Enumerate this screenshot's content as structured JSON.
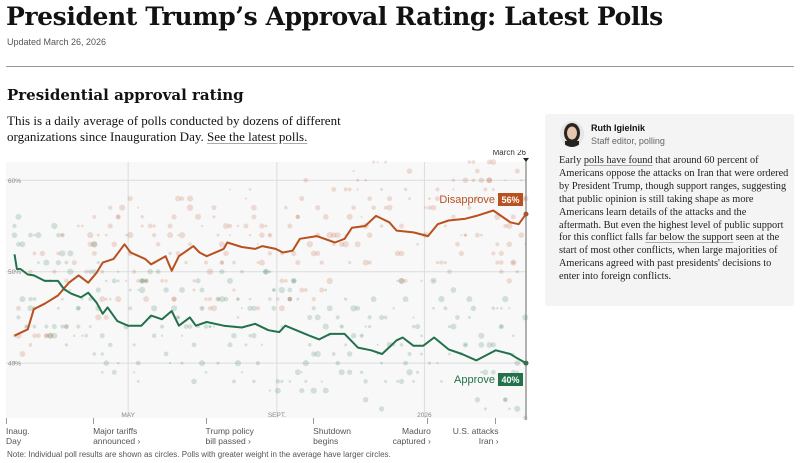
{
  "header": {
    "title": "President Trump’s Approval Rating: Latest Polls",
    "updated": "Updated March 26, 2026"
  },
  "section": {
    "title": "Presidential approval rating",
    "description": "This is a daily average of polls conducted by dozens of different organizations since Inauguration Day.",
    "link": "See the latest polls."
  },
  "panel": {
    "name": "Ruth Igielnik",
    "role": "Staff editor, polling",
    "body_parts": [
      "Early ",
      "polls have found",
      " that around 60 percent of Americans oppose the attacks on Iran that were ordered by President Trump, though support ranges, suggesting that public opinion is still taking shape as more Americans learn details of the attacks and the aftermath. But even the highest level of public support for this conflict falls ",
      "far below the support",
      " seen at the start of most other conflicts, when large majorities of Americans agreed with past presidents' decisions to enter into foreign conflicts."
    ]
  },
  "chart_data": {
    "type": "line",
    "y_ticks": [
      "60%",
      "50%",
      "40%"
    ],
    "y_tick_values": [
      60,
      50,
      40
    ],
    "ylim": [
      34,
      62
    ],
    "xlim": [
      "2025-01-20",
      "2026-03-26"
    ],
    "x_ticks": [
      {
        "label": "MAY",
        "date": "2025-05-01"
      },
      {
        "label": "SEPT.",
        "date": "2025-09-01"
      },
      {
        "label": "2026",
        "date": "2026-01-01"
      }
    ],
    "current_marker": {
      "label": "March 26",
      "date": "2026-03-26"
    },
    "grid": true,
    "colors": {
      "disapprove": "#b9501f",
      "approve": "#23714a"
    },
    "series": [
      {
        "name": "Disapprove",
        "end_label": "56%",
        "points": [
          [
            "2025-01-27",
            43.0
          ],
          [
            "2025-02-07",
            43.7
          ],
          [
            "2025-02-12",
            45.9
          ],
          [
            "2025-02-21",
            46.5
          ],
          [
            "2025-03-04",
            47.4
          ],
          [
            "2025-03-13",
            48.8
          ],
          [
            "2025-03-21",
            49.6
          ],
          [
            "2025-03-29",
            48.8
          ],
          [
            "2025-04-05",
            49.9
          ],
          [
            "2025-04-10",
            51.0
          ],
          [
            "2025-04-19",
            51.4
          ],
          [
            "2025-04-28",
            53.0
          ],
          [
            "2025-05-03",
            52.1
          ],
          [
            "2025-05-15",
            51.4
          ],
          [
            "2025-05-20",
            50.8
          ],
          [
            "2025-06-01",
            51.7
          ],
          [
            "2025-06-06",
            50.1
          ],
          [
            "2025-06-12",
            51.7
          ],
          [
            "2025-06-24",
            52.8
          ],
          [
            "2025-06-29",
            52.1
          ],
          [
            "2025-07-05",
            51.7
          ],
          [
            "2025-07-19",
            52.5
          ],
          [
            "2025-07-22",
            53.2
          ],
          [
            "2025-08-03",
            52.7
          ],
          [
            "2025-08-14",
            52.5
          ],
          [
            "2025-08-20",
            52.8
          ],
          [
            "2025-08-31",
            52.5
          ],
          [
            "2025-09-06",
            52.1
          ],
          [
            "2025-09-14",
            52.3
          ],
          [
            "2025-09-20",
            53.6
          ],
          [
            "2025-10-04",
            53.9
          ],
          [
            "2025-10-19",
            53.2
          ],
          [
            "2025-10-27",
            53.6
          ],
          [
            "2025-11-02",
            54.8
          ],
          [
            "2025-11-13",
            55.0
          ],
          [
            "2025-11-22",
            56.1
          ],
          [
            "2025-12-03",
            55.4
          ],
          [
            "2025-12-09",
            54.5
          ],
          [
            "2025-12-23",
            54.3
          ],
          [
            "2026-01-04",
            53.9
          ],
          [
            "2026-01-12",
            55.2
          ],
          [
            "2026-01-21",
            55.6
          ],
          [
            "2026-02-04",
            55.8
          ],
          [
            "2026-02-13",
            56.1
          ],
          [
            "2026-02-27",
            56.7
          ],
          [
            "2026-03-13",
            55.4
          ],
          [
            "2026-03-20",
            55.2
          ],
          [
            "2026-03-26",
            56.3
          ]
        ]
      },
      {
        "name": "Approve",
        "end_label": "40%",
        "points": [
          [
            "2025-01-27",
            51.9
          ],
          [
            "2025-01-29",
            50.3
          ],
          [
            "2025-02-01",
            50.3
          ],
          [
            "2025-02-07",
            49.7
          ],
          [
            "2025-02-12",
            49.6
          ],
          [
            "2025-02-21",
            49.0
          ],
          [
            "2025-03-04",
            49.0
          ],
          [
            "2025-03-09",
            48.1
          ],
          [
            "2025-03-15",
            47.6
          ],
          [
            "2025-03-23",
            47.2
          ],
          [
            "2025-03-29",
            47.7
          ],
          [
            "2025-04-05",
            46.6
          ],
          [
            "2025-04-10",
            45.4
          ],
          [
            "2025-04-14",
            46.1
          ],
          [
            "2025-04-22",
            44.6
          ],
          [
            "2025-05-01",
            44.1
          ],
          [
            "2025-05-12",
            44.1
          ],
          [
            "2025-05-20",
            45.2
          ],
          [
            "2025-05-29",
            44.8
          ],
          [
            "2025-06-06",
            45.7
          ],
          [
            "2025-06-12",
            44.1
          ],
          [
            "2025-06-21",
            45.0
          ],
          [
            "2025-06-26",
            44.1
          ],
          [
            "2025-07-05",
            44.5
          ],
          [
            "2025-07-19",
            44.1
          ],
          [
            "2025-08-03",
            43.9
          ],
          [
            "2025-08-14",
            44.3
          ],
          [
            "2025-08-25",
            43.6
          ],
          [
            "2025-09-03",
            43.4
          ],
          [
            "2025-09-08",
            44.1
          ],
          [
            "2025-09-17",
            43.6
          ],
          [
            "2025-09-28",
            43.0
          ],
          [
            "2025-10-06",
            42.6
          ],
          [
            "2025-10-15",
            43.2
          ],
          [
            "2025-10-27",
            43.2
          ],
          [
            "2025-11-07",
            41.7
          ],
          [
            "2025-11-18",
            41.4
          ],
          [
            "2025-11-27",
            41.0
          ],
          [
            "2025-12-09",
            42.5
          ],
          [
            "2025-12-14",
            42.8
          ],
          [
            "2025-12-23",
            41.9
          ],
          [
            "2025-12-31",
            41.9
          ],
          [
            "2026-01-09",
            42.8
          ],
          [
            "2026-01-21",
            41.5
          ],
          [
            "2026-02-01",
            41.0
          ],
          [
            "2026-02-13",
            40.3
          ],
          [
            "2026-03-01",
            41.4
          ],
          [
            "2026-03-13",
            41.0
          ],
          [
            "2026-03-18",
            40.6
          ],
          [
            "2026-03-26",
            40.0
          ]
        ]
      }
    ],
    "events": [
      {
        "label": "Inaug. Day",
        "lines": [
          "Inaug.",
          "Day"
        ],
        "date": "2025-01-20",
        "align": "left"
      },
      {
        "label": "Major tariffs announced ›",
        "lines": [
          "Major tariffs",
          "announced ›"
        ],
        "date": "2025-04-02",
        "align": "left"
      },
      {
        "label": "Trump policy bill passed ›",
        "lines": [
          "Trump policy",
          "bill passed ›"
        ],
        "date": "2025-07-04",
        "align": "left"
      },
      {
        "label": "Shutdown begins",
        "lines": [
          "Shutdown",
          "begins"
        ],
        "date": "2025-10-01",
        "align": "left"
      },
      {
        "label": "Maduro captured ›",
        "lines": [
          "Maduro",
          "captured ›"
        ],
        "date": "2026-01-03",
        "align": "right"
      },
      {
        "label": "U.S. attacks Iran ›",
        "lines": [
          "U.S. attacks",
          "Iran ›"
        ],
        "date": "2026-02-28",
        "align": "right"
      }
    ],
    "note": "Note: Individual poll results are shown as circles. Polls with greater weight in the average have larger circles."
  }
}
